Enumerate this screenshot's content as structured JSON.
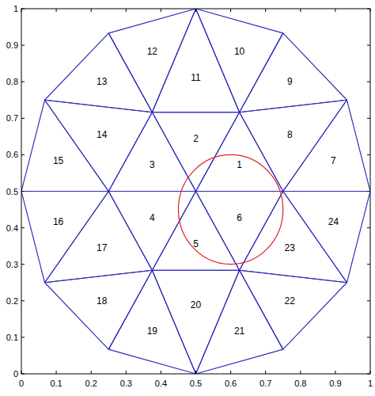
{
  "chart_data": {
    "type": "mesh",
    "xlim": [
      0,
      1
    ],
    "ylim": [
      0,
      1
    ],
    "xticks": [
      0,
      0.1,
      0.2,
      0.3,
      0.4,
      0.5,
      0.6,
      0.7,
      0.8,
      0.9,
      1
    ],
    "yticks": [
      0,
      0.1,
      0.2,
      0.3,
      0.4,
      0.5,
      0.6,
      0.7,
      0.8,
      0.9,
      1
    ],
    "color": "#2a2ab8",
    "nodes": [
      [
        0.5,
        0.5
      ],
      [
        0.75,
        0.5
      ],
      [
        0.625,
        0.7165
      ],
      [
        0.375,
        0.7165
      ],
      [
        0.25,
        0.5
      ],
      [
        0.375,
        0.2835
      ],
      [
        0.625,
        0.2835
      ],
      [
        1,
        0.5
      ],
      [
        0.933,
        0.75
      ],
      [
        0.75,
        0.933
      ],
      [
        0.5,
        1
      ],
      [
        0.25,
        0.933
      ],
      [
        0.067,
        0.75
      ],
      [
        0,
        0.5
      ],
      [
        0.067,
        0.25
      ],
      [
        0.25,
        0.067
      ],
      [
        0.5,
        0
      ],
      [
        0.75,
        0.067
      ],
      [
        0.933,
        0.25
      ]
    ],
    "elements": [
      {
        "label": "1",
        "nodes": [
          0,
          1,
          2
        ]
      },
      {
        "label": "2",
        "nodes": [
          0,
          2,
          3
        ]
      },
      {
        "label": "3",
        "nodes": [
          0,
          3,
          4
        ]
      },
      {
        "label": "4",
        "nodes": [
          0,
          4,
          5
        ]
      },
      {
        "label": "5",
        "nodes": [
          0,
          5,
          6
        ]
      },
      {
        "label": "6",
        "nodes": [
          0,
          6,
          1
        ]
      },
      {
        "label": "7",
        "nodes": [
          1,
          7,
          8
        ]
      },
      {
        "label": "8",
        "nodes": [
          1,
          8,
          2
        ]
      },
      {
        "label": "9",
        "nodes": [
          2,
          8,
          9
        ]
      },
      {
        "label": "10",
        "nodes": [
          2,
          9,
          10
        ]
      },
      {
        "label": "11",
        "nodes": [
          2,
          10,
          3
        ]
      },
      {
        "label": "12",
        "nodes": [
          3,
          10,
          11
        ]
      },
      {
        "label": "13",
        "nodes": [
          3,
          11,
          12
        ]
      },
      {
        "label": "14",
        "nodes": [
          3,
          12,
          4
        ]
      },
      {
        "label": "15",
        "nodes": [
          4,
          12,
          13
        ]
      },
      {
        "label": "16",
        "nodes": [
          4,
          13,
          14
        ]
      },
      {
        "label": "17",
        "nodes": [
          4,
          14,
          5
        ]
      },
      {
        "label": "18",
        "nodes": [
          5,
          14,
          15
        ]
      },
      {
        "label": "19",
        "nodes": [
          5,
          15,
          16
        ]
      },
      {
        "label": "20",
        "nodes": [
          5,
          16,
          6
        ]
      },
      {
        "label": "21",
        "nodes": [
          6,
          16,
          17
        ]
      },
      {
        "label": "22",
        "nodes": [
          6,
          17,
          18
        ]
      },
      {
        "label": "23",
        "nodes": [
          6,
          18,
          1
        ]
      },
      {
        "label": "24",
        "nodes": [
          1,
          18,
          7
        ]
      }
    ],
    "circle": {
      "center": [
        0.6,
        0.45
      ],
      "radius": 0.15,
      "color": "#e02020"
    }
  }
}
